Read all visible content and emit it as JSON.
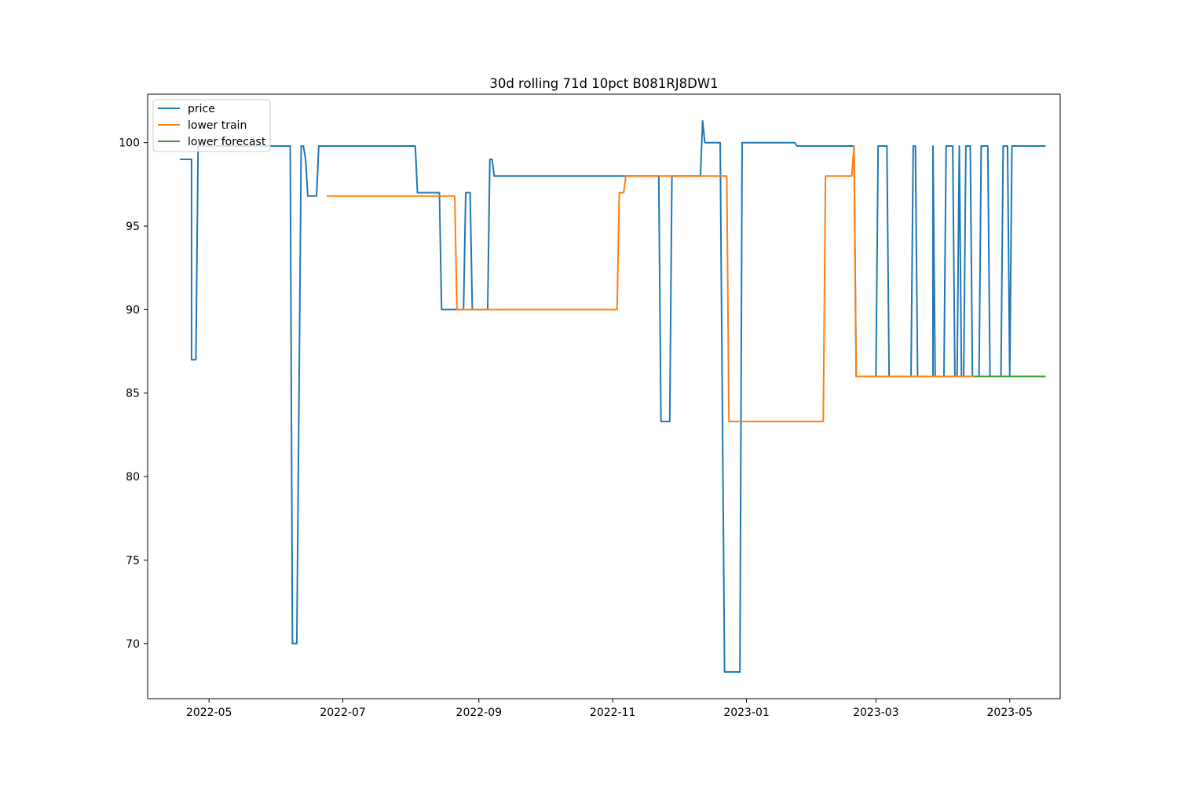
{
  "chart_data": {
    "type": "line",
    "title": "30d rolling 71d 10pct B081RJ8DW1",
    "xlabel": "",
    "ylabel": "",
    "xlim": [
      "2022-04-03",
      "2023-05-24"
    ],
    "ylim": [
      66.7,
      102.9
    ],
    "x_ticks": [
      "2022-05-01",
      "2022-07-01",
      "2022-09-01",
      "2022-11-01",
      "2023-01-01",
      "2023-03-01",
      "2023-05-01"
    ],
    "x_tick_labels": [
      "2022-05",
      "2022-07",
      "2022-09",
      "2022-11",
      "2023-01",
      "2023-03",
      "2023-05"
    ],
    "y_ticks": [
      70,
      75,
      80,
      85,
      90,
      95,
      100
    ],
    "y_tick_labels": [
      "70",
      "75",
      "80",
      "85",
      "90",
      "95",
      "100"
    ],
    "legend_position": "upper-left",
    "series": [
      {
        "name": "price",
        "color": "#1f77b4",
        "points": [
          [
            "2022-04-18",
            99.0
          ],
          [
            "2022-04-23",
            99.0
          ],
          [
            "2022-04-23",
            87.0
          ],
          [
            "2022-04-25",
            87.0
          ],
          [
            "2022-04-26",
            99.8
          ],
          [
            "2022-06-07",
            99.8
          ],
          [
            "2022-06-08",
            70.0
          ],
          [
            "2022-06-10",
            70.0
          ],
          [
            "2022-06-12",
            99.8
          ],
          [
            "2022-06-13",
            99.8
          ],
          [
            "2022-06-14",
            99.0
          ],
          [
            "2022-06-15",
            96.8
          ],
          [
            "2022-06-19",
            96.8
          ],
          [
            "2022-06-20",
            99.8
          ],
          [
            "2022-08-03",
            99.8
          ],
          [
            "2022-08-04",
            97.0
          ],
          [
            "2022-08-14",
            97.0
          ],
          [
            "2022-08-15",
            90.0
          ],
          [
            "2022-08-25",
            90.0
          ],
          [
            "2022-08-26",
            97.0
          ],
          [
            "2022-08-28",
            97.0
          ],
          [
            "2022-08-29",
            90.0
          ],
          [
            "2022-09-05",
            90.0
          ],
          [
            "2022-09-06",
            99.0
          ],
          [
            "2022-09-07",
            99.0
          ],
          [
            "2022-09-08",
            98.0
          ],
          [
            "2022-11-22",
            98.0
          ],
          [
            "2022-11-23",
            83.3
          ],
          [
            "2022-11-27",
            83.3
          ],
          [
            "2022-11-28",
            98.0
          ],
          [
            "2022-12-11",
            98.0
          ],
          [
            "2022-12-12",
            101.3
          ],
          [
            "2022-12-13",
            100.0
          ],
          [
            "2022-12-20",
            100.0
          ],
          [
            "2022-12-22",
            68.3
          ],
          [
            "2022-12-29",
            68.3
          ],
          [
            "2022-12-30",
            100.0
          ],
          [
            "2023-01-23",
            100.0
          ],
          [
            "2023-01-24",
            99.8
          ],
          [
            "2023-02-19",
            99.8
          ],
          [
            "2023-02-20",
            86.0
          ],
          [
            "2023-03-01",
            86.0
          ],
          [
            "2023-03-02",
            99.8
          ],
          [
            "2023-03-06",
            99.8
          ],
          [
            "2023-03-07",
            86.0
          ],
          [
            "2023-03-17",
            86.0
          ],
          [
            "2023-03-18",
            99.8
          ],
          [
            "2023-03-19",
            99.8
          ],
          [
            "2023-03-20",
            86.0
          ],
          [
            "2023-03-27",
            86.0
          ],
          [
            "2023-03-27",
            99.8
          ],
          [
            "2023-03-28",
            86.0
          ],
          [
            "2023-04-01",
            86.0
          ],
          [
            "2023-04-02",
            99.8
          ],
          [
            "2023-04-05",
            99.8
          ],
          [
            "2023-04-06",
            86.0
          ],
          [
            "2023-04-07",
            86.0
          ],
          [
            "2023-04-08",
            99.8
          ],
          [
            "2023-04-09",
            86.0
          ],
          [
            "2023-04-10",
            86.0
          ],
          [
            "2023-04-11",
            99.8
          ],
          [
            "2023-04-13",
            99.8
          ],
          [
            "2023-04-14",
            86.0
          ],
          [
            "2023-04-17",
            86.0
          ],
          [
            "2023-04-18",
            99.8
          ],
          [
            "2023-04-21",
            99.8
          ],
          [
            "2023-04-22",
            86.0
          ],
          [
            "2023-04-27",
            86.0
          ],
          [
            "2023-04-28",
            99.8
          ],
          [
            "2023-04-30",
            99.8
          ],
          [
            "2023-05-01",
            86.0
          ],
          [
            "2023-05-02",
            99.8
          ],
          [
            "2023-05-17",
            99.8
          ]
        ]
      },
      {
        "name": "lower train",
        "color": "#ff7f0e",
        "points": [
          [
            "2022-06-24",
            96.8
          ],
          [
            "2022-08-21",
            96.8
          ],
          [
            "2022-08-22",
            90.0
          ],
          [
            "2022-11-03",
            90.0
          ],
          [
            "2022-11-04",
            97.0
          ],
          [
            "2022-11-06",
            97.0
          ],
          [
            "2022-11-07",
            98.0
          ],
          [
            "2022-12-23",
            98.0
          ],
          [
            "2022-12-24",
            83.3
          ],
          [
            "2023-02-05",
            83.3
          ],
          [
            "2023-02-06",
            98.0
          ],
          [
            "2023-02-18",
            98.0
          ],
          [
            "2023-02-19",
            99.8
          ],
          [
            "2023-02-20",
            86.0
          ],
          [
            "2023-04-15",
            86.0
          ]
        ]
      },
      {
        "name": "lower forecast",
        "color": "#2ca02c",
        "points": [
          [
            "2023-04-15",
            86.0
          ],
          [
            "2023-05-17",
            86.0
          ]
        ]
      }
    ]
  }
}
